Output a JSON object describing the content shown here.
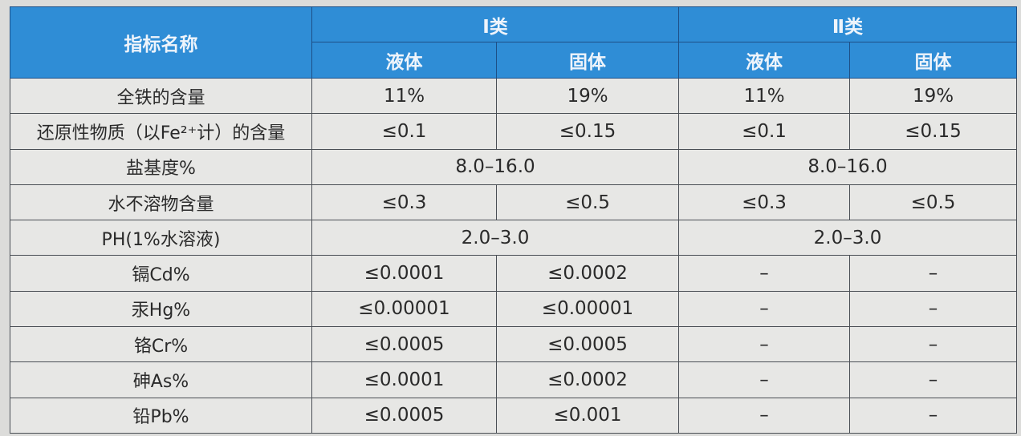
{
  "header": {
    "indicator": "指标名称",
    "class1": "Ⅰ类",
    "class2": "Ⅱ类",
    "liquid": "液体",
    "solid": "固体"
  },
  "rows": [
    {
      "name": "全铁的含量",
      "values": [
        "11%",
        "19%",
        "11%",
        "19%"
      ]
    },
    {
      "name": "还原性物质（以Fe²⁺计）的含量",
      "values": [
        "≤0.1",
        "≤0.15",
        "≤0.1",
        "≤0.15"
      ]
    },
    {
      "name": "盐基度%",
      "merged": true,
      "values": [
        "8.0–16.0",
        "8.0–16.0"
      ]
    },
    {
      "name": "水不溶物含量",
      "values": [
        "≤0.3",
        "≤0.5",
        "≤0.3",
        "≤0.5"
      ]
    },
    {
      "name": "PH(1%水溶液)",
      "merged": true,
      "values": [
        "2.0–3.0",
        "2.0–3.0"
      ]
    },
    {
      "name": "镉Cd%",
      "values": [
        "≤0.0001",
        "≤0.0002",
        "–",
        "–"
      ]
    },
    {
      "name": "汞Hg%",
      "values": [
        "≤0.00001",
        "≤0.00001",
        "–",
        "–"
      ]
    },
    {
      "name": "铬Cr%",
      "values": [
        "≤0.0005",
        "≤0.0005",
        "–",
        "–"
      ]
    },
    {
      "name": "砷As%",
      "values": [
        "≤0.0001",
        "≤0.0002",
        "–",
        "–"
      ]
    },
    {
      "name": "铅Pb%",
      "values": [
        "≤0.0005",
        "≤0.001",
        "–",
        "–"
      ]
    }
  ]
}
